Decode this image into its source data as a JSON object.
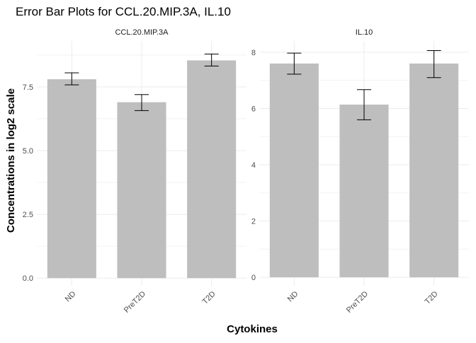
{
  "chart_data": {
    "type": "bar",
    "title": "Error Bar Plots for CCL.20.MIP.3A, IL.10",
    "xlabel": "Cytokines",
    "ylabel": "Concentrations in log2 scale",
    "categories": [
      "ND",
      "PreT2D",
      "T2D"
    ],
    "bar_color": "#bebebe",
    "grid": true,
    "panels": [
      {
        "name": "CCL.20.MIP.3A",
        "ylim": [
          -0.3,
          9.3
        ],
        "yticks": [
          0.0,
          2.5,
          5.0,
          7.5
        ],
        "ytick_labels": [
          "0.0",
          "2.5",
          "5.0",
          "7.5"
        ],
        "values": [
          7.8,
          6.9,
          8.54
        ],
        "err_low": [
          7.58,
          6.57,
          8.32
        ],
        "err_high": [
          8.05,
          7.2,
          8.79
        ]
      },
      {
        "name": "IL.10",
        "ylim": [
          -0.3,
          8.4
        ],
        "yticks": [
          0,
          2,
          4,
          6,
          8
        ],
        "ytick_labels": [
          "0",
          "2",
          "4",
          "6",
          "8"
        ],
        "values": [
          7.6,
          6.14,
          7.6
        ],
        "err_low": [
          7.22,
          5.6,
          7.1
        ],
        "err_high": [
          7.97,
          6.67,
          8.06
        ]
      }
    ]
  }
}
